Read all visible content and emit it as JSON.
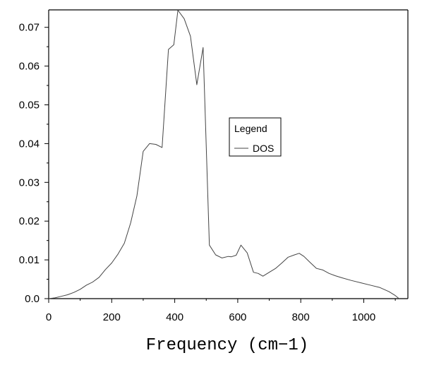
{
  "chart_data": {
    "type": "line",
    "title": "",
    "xlabel": "Frequency (cm−1)",
    "ylabel": "",
    "xlim": [
      0,
      1140
    ],
    "ylim": [
      0,
      0.0745
    ],
    "x_ticks": [
      0,
      200,
      400,
      600,
      800,
      1000
    ],
    "x_tick_labels": [
      "0",
      "200",
      "400",
      "600",
      "800",
      "1000"
    ],
    "y_ticks": [
      0.0,
      0.01,
      0.02,
      0.03,
      0.04,
      0.05,
      0.06,
      0.07
    ],
    "y_tick_labels": [
      "0.0",
      "0.01",
      "0.02",
      "0.03",
      "0.04",
      "0.05",
      "0.06",
      "0.07"
    ],
    "grid": false,
    "legend": {
      "title": "Legend",
      "placement": "center-right"
    },
    "series": [
      {
        "name": "DOS",
        "color": "#444444",
        "x": [
          0,
          20,
          40,
          60,
          80,
          100,
          120,
          140,
          160,
          180,
          200,
          220,
          240,
          260,
          280,
          300,
          320,
          340,
          360,
          380,
          397,
          410,
          430,
          450,
          470,
          490,
          510,
          530,
          550,
          570,
          580,
          595,
          610,
          630,
          650,
          665,
          680,
          700,
          720,
          740,
          760,
          780,
          795,
          810,
          830,
          850,
          870,
          890,
          910,
          930,
          960,
          990,
          1020,
          1050,
          1080,
          1100,
          1112
        ],
        "y": [
          0.0,
          0.0002,
          0.0006,
          0.001,
          0.0016,
          0.0024,
          0.0035,
          0.0043,
          0.0055,
          0.0075,
          0.0092,
          0.0115,
          0.0143,
          0.0195,
          0.0265,
          0.038,
          0.04,
          0.0398,
          0.039,
          0.0643,
          0.0655,
          0.0744,
          0.0722,
          0.0677,
          0.0552,
          0.0648,
          0.0138,
          0.0113,
          0.0105,
          0.0109,
          0.0108,
          0.0112,
          0.0138,
          0.0118,
          0.0068,
          0.0065,
          0.0058,
          0.0068,
          0.0078,
          0.0092,
          0.0107,
          0.0113,
          0.0117,
          0.0109,
          0.0093,
          0.0078,
          0.0074,
          0.0065,
          0.0059,
          0.0054,
          0.0047,
          0.0041,
          0.0035,
          0.0029,
          0.0018,
          0.0008,
          0.0
        ]
      }
    ]
  }
}
